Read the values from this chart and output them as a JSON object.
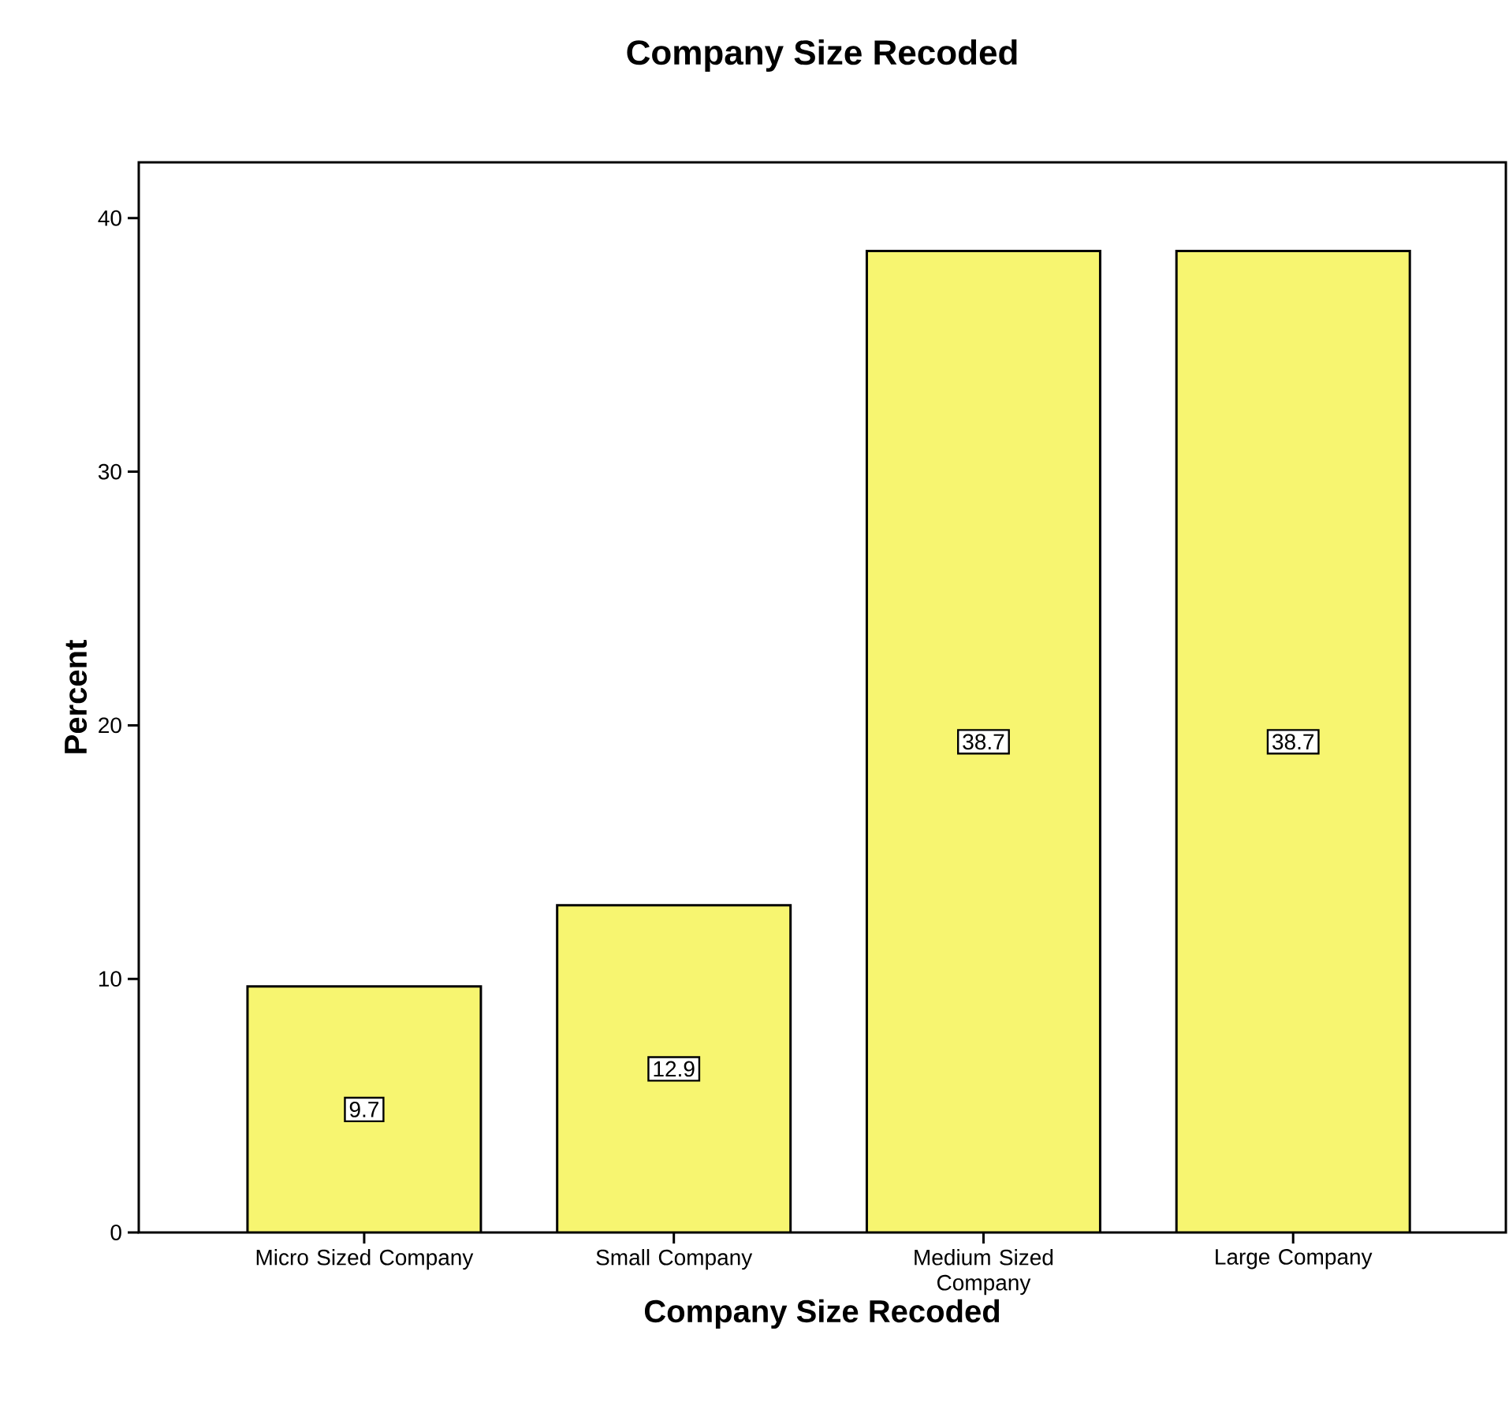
{
  "chart_data": {
    "type": "bar",
    "title": "Company Size Recoded",
    "xlabel": "Company Size Recoded",
    "ylabel": "Percent",
    "categories": [
      "Micro Sized Company",
      "Small Company",
      "Medium Sized Company",
      "Large Company"
    ],
    "values": [
      9.7,
      12.9,
      38.7,
      38.7
    ],
    "color": "#f7f570",
    "ylim": [
      0,
      42.2
    ],
    "yticks": [
      0,
      10,
      20,
      30,
      40
    ],
    "data_labels": true
  }
}
